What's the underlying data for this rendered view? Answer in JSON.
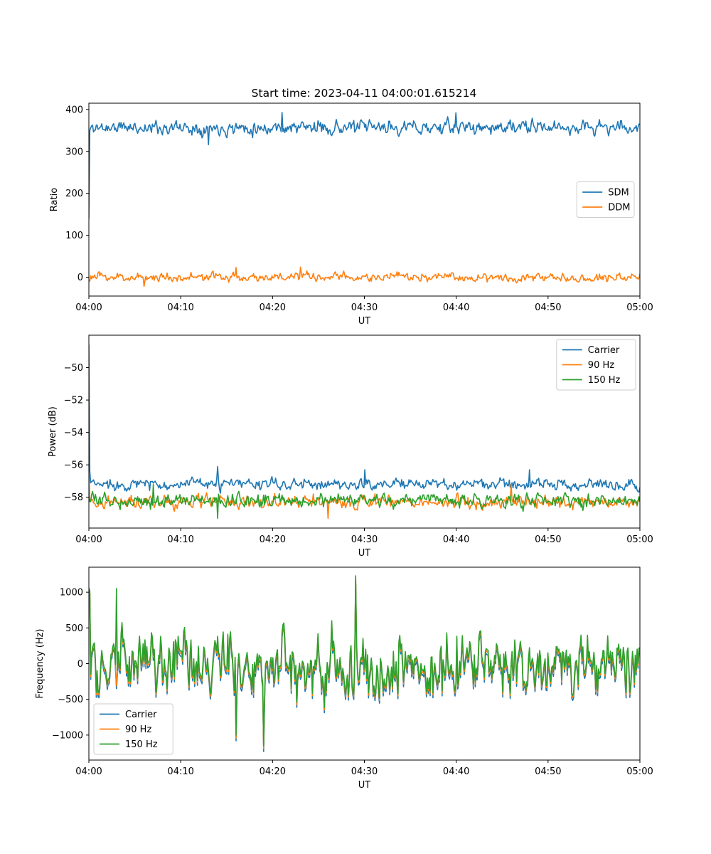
{
  "figure": {
    "title": "Start time: 2023-04-11 04:00:01.615214"
  },
  "colors": {
    "blue": "#1f77b4",
    "orange": "#ff7f0e",
    "green": "#2ca02c"
  },
  "chart_data": [
    {
      "type": "line",
      "xlabel": "UT",
      "ylabel": "Ratio",
      "xlim": [
        "04:00",
        "05:00"
      ],
      "ylim": [
        -45,
        415
      ],
      "xticks": [
        "04:00",
        "04:10",
        "04:20",
        "04:30",
        "04:40",
        "04:50",
        "05:00"
      ],
      "yticks": [
        0,
        100,
        200,
        300,
        400
      ],
      "yticklabels": [
        "0",
        "100",
        "200",
        "300",
        "400"
      ],
      "legend_position": "center-right",
      "grid": false,
      "series": [
        {
          "name": "SDM",
          "color": "#1f77b4",
          "mean": 357,
          "noise": 14,
          "seed": 11,
          "start_values": [
            140,
            350
          ],
          "peaks": [
            {
              "t": "04:21",
              "value": 393
            },
            {
              "t": "04:40",
              "value": 392
            },
            {
              "t": "04:13",
              "value": 316
            }
          ]
        },
        {
          "name": "DDM",
          "color": "#ff7f0e",
          "mean": 0,
          "noise": 9,
          "seed": 23,
          "start_values": [],
          "peaks": [
            {
              "t": "04:23",
              "value": 24
            },
            {
              "t": "04:16",
              "value": 23
            },
            {
              "t": "04:06",
              "value": -22
            }
          ]
        }
      ]
    },
    {
      "type": "line",
      "xlabel": "UT",
      "ylabel": "Power (dB)",
      "xlim": [
        "04:00",
        "05:00"
      ],
      "ylim": [
        -59.9,
        -48.0
      ],
      "xticks": [
        "04:00",
        "04:10",
        "04:20",
        "04:30",
        "04:40",
        "04:50",
        "05:00"
      ],
      "yticks": [
        -58,
        -56,
        -54,
        -52,
        -50
      ],
      "yticklabels": [
        "−58",
        "−56",
        "−54",
        "−52",
        "−50"
      ],
      "legend_position": "upper-right",
      "grid": false,
      "series": [
        {
          "name": "Carrier",
          "color": "#1f77b4",
          "mean": -57.2,
          "noise": 0.3,
          "seed": 37,
          "start_values": [
            -48.6,
            -56.4
          ],
          "peaks": [
            {
              "t": "04:14",
              "value": -56.1
            },
            {
              "t": "04:30",
              "value": -56.3
            },
            {
              "t": "04:48",
              "value": -56.3
            }
          ]
        },
        {
          "name": "90 Hz",
          "color": "#ff7f0e",
          "mean": -58.3,
          "noise": 0.35,
          "seed": 41,
          "start_values": [
            -56.6
          ],
          "peaks": [
            {
              "t": "04:46",
              "value": -57.2
            },
            {
              "t": "04:26",
              "value": -59.3
            }
          ]
        },
        {
          "name": "150 Hz",
          "color": "#2ca02c",
          "mean": -58.2,
          "noise": 0.35,
          "seed": 53,
          "start_values": [
            -58.0
          ],
          "peaks": [
            {
              "t": "04:07",
              "value": -57.2
            },
            {
              "t": "04:14",
              "value": -59.3
            }
          ]
        }
      ]
    },
    {
      "type": "line",
      "xlabel": "UT",
      "ylabel": "Frequency (Hz)",
      "xlim": [
        "04:00",
        "05:00"
      ],
      "ylim": [
        -1350,
        1350
      ],
      "xticks": [
        "04:00",
        "04:10",
        "04:20",
        "04:30",
        "04:40",
        "04:50",
        "05:00"
      ],
      "yticks": [
        -1000,
        -500,
        0,
        500,
        1000
      ],
      "yticklabels": [
        "−1000",
        "−500",
        "0",
        "500",
        "1000"
      ],
      "legend_position": "lower-left",
      "grid": false,
      "series": [
        {
          "name": "Carrier",
          "color": "#1f77b4",
          "mean": 0,
          "noise": 360,
          "seed": 71,
          "offset": -70,
          "start_values": [
            1030,
            980
          ],
          "peaks": [
            {
              "t": "04:29",
              "value": 1180
            },
            {
              "t": "04:19",
              "value": -1230
            },
            {
              "t": "04:16",
              "value": -1080
            }
          ]
        },
        {
          "name": "90 Hz",
          "color": "#ff7f0e",
          "mean": 0,
          "noise": 360,
          "seed": 71,
          "offset": -30,
          "start_values": [
            1040,
            1000
          ],
          "peaks": [
            {
              "t": "04:29",
              "value": 1200
            },
            {
              "t": "04:19",
              "value": -1190
            },
            {
              "t": "04:16",
              "value": -1040
            }
          ]
        },
        {
          "name": "150 Hz",
          "color": "#2ca02c",
          "mean": 0,
          "noise": 360,
          "seed": 71,
          "offset": 0,
          "start_values": [
            1060,
            1020
          ],
          "peaks": [
            {
              "t": "04:29",
              "value": 1230
            },
            {
              "t": "04:19",
              "value": -1150
            },
            {
              "t": "04:16",
              "value": -1000
            },
            {
              "t": "04:03",
              "value": 1050
            }
          ]
        }
      ]
    }
  ]
}
